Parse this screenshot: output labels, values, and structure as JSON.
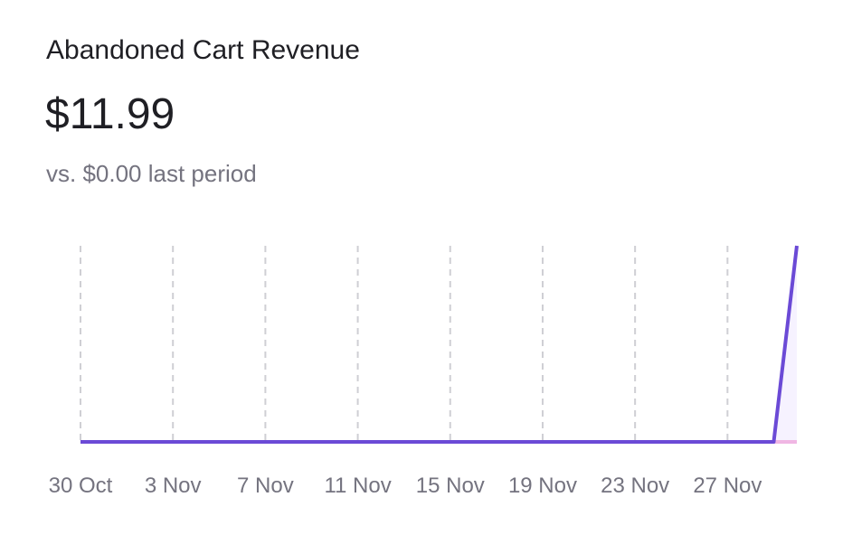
{
  "card": {
    "title": "Abandoned Cart Revenue",
    "value": "$11.99",
    "comparison": "vs. $0.00 last period"
  },
  "colors": {
    "line": "#6b4ad6",
    "previous_line": "#f0b6e3",
    "area_fill": "#f6f2ff",
    "grid": "#cfcfd4",
    "text_muted": "#74737f"
  },
  "chart_data": {
    "type": "line",
    "x_tick_labels": [
      "30 Oct",
      "3 Nov",
      "7 Nov",
      "11 Nov",
      "15 Nov",
      "19 Nov",
      "23 Nov",
      "27 Nov"
    ],
    "x": [
      "2023-10-30",
      "2023-10-31",
      "2023-11-01",
      "2023-11-02",
      "2023-11-03",
      "2023-11-04",
      "2023-11-05",
      "2023-11-06",
      "2023-11-07",
      "2023-11-08",
      "2023-11-09",
      "2023-11-10",
      "2023-11-11",
      "2023-11-12",
      "2023-11-13",
      "2023-11-14",
      "2023-11-15",
      "2023-11-16",
      "2023-11-17",
      "2023-11-18",
      "2023-11-19",
      "2023-11-20",
      "2023-11-21",
      "2023-11-22",
      "2023-11-23",
      "2023-11-24",
      "2023-11-25",
      "2023-11-26",
      "2023-11-27",
      "2023-11-28",
      "2023-11-29",
      "2023-11-30"
    ],
    "series": [
      {
        "values": [
          0,
          0,
          0,
          0,
          0,
          0,
          0,
          0,
          0,
          0,
          0,
          0,
          0,
          0,
          0,
          0,
          0,
          0,
          0,
          0,
          0,
          0,
          0,
          0,
          0,
          0,
          0,
          0,
          0,
          0,
          0,
          11.99
        ]
      },
      {
        "values": [
          0,
          0,
          0,
          0,
          0,
          0,
          0,
          0,
          0,
          0,
          0,
          0,
          0,
          0,
          0,
          0,
          0,
          0,
          0,
          0,
          0,
          0,
          0,
          0,
          0,
          0,
          0,
          0,
          0,
          0,
          0,
          0
        ]
      }
    ],
    "ylim": [
      0,
      11.99
    ],
    "grid": "vertical dashed",
    "legend": "none"
  }
}
